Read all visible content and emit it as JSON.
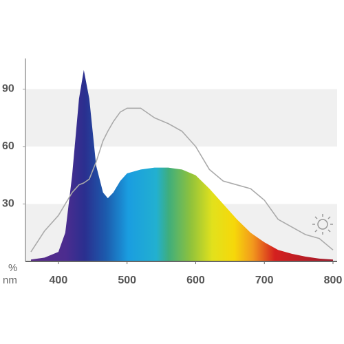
{
  "chart_data": {
    "type": "area",
    "x_label": "nm",
    "y_label": "%",
    "x": [
      360,
      380,
      400,
      410,
      420,
      430,
      437,
      445,
      455,
      465,
      472,
      480,
      490,
      500,
      520,
      540,
      560,
      580,
      600,
      620,
      640,
      660,
      680,
      700,
      720,
      740,
      760,
      780,
      800
    ],
    "series": [
      {
        "kind": "area",
        "values": [
          1,
          2,
          5,
          15,
          45,
          85,
          100,
          85,
          50,
          36,
          33,
          36,
          42,
          46,
          48,
          49,
          49,
          48,
          45,
          38,
          30,
          22,
          15,
          10,
          6,
          4,
          2.5,
          1.5,
          1
        ]
      },
      {
        "kind": "line",
        "color": "#aaaaaa",
        "values": [
          5,
          16,
          24,
          30,
          36,
          40,
          41,
          43,
          52,
          63,
          68,
          73,
          78,
          80,
          80,
          75,
          72,
          68,
          60,
          48,
          42,
          40,
          38,
          32,
          22,
          18,
          14,
          12,
          6
        ]
      }
    ],
    "xlim": [
      352,
      806
    ],
    "ylim": [
      0,
      106
    ],
    "xticks": [
      400,
      500,
      600,
      700,
      800
    ],
    "yticks": [
      30,
      60,
      90
    ],
    "bands": [
      [
        0,
        30
      ],
      [
        60,
        90
      ]
    ]
  }
}
